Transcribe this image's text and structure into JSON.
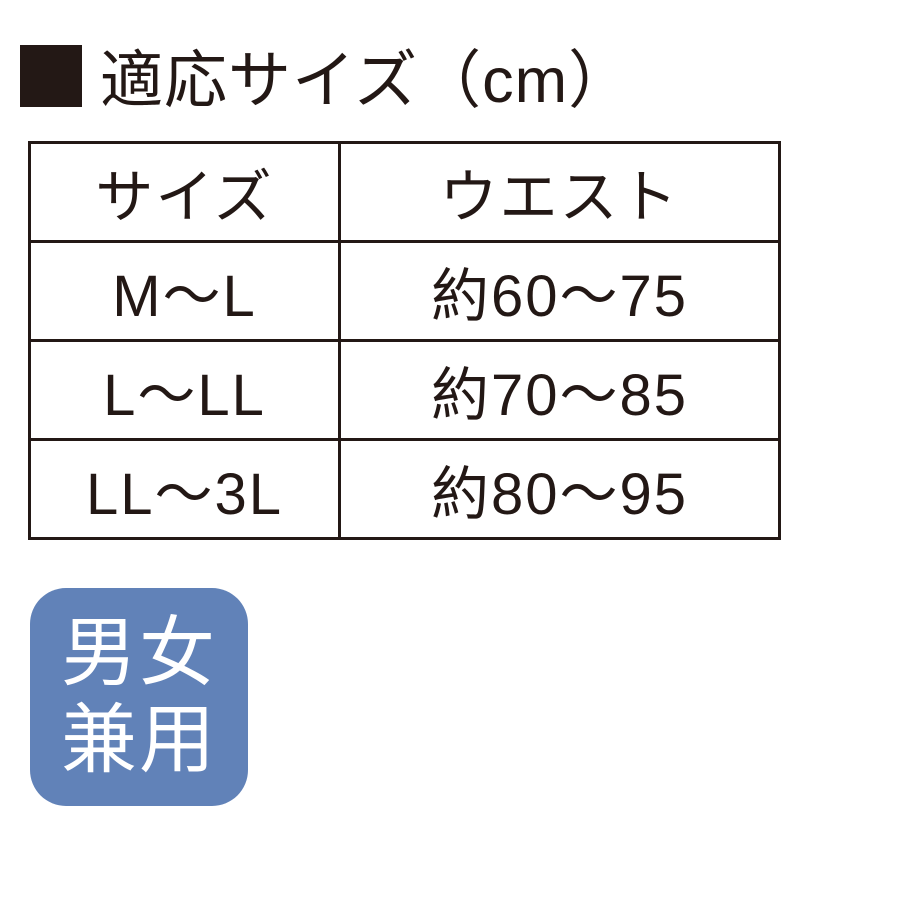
{
  "title": "適応サイズ（cm）",
  "table": {
    "headers": {
      "size": "サイズ",
      "waist": "ウエスト"
    },
    "rows": [
      {
        "size": "M〜L",
        "waist": "約60〜75"
      },
      {
        "size": "L〜LL",
        "waist": "約70〜85"
      },
      {
        "size": "LL〜3L",
        "waist": "約80〜95"
      }
    ]
  },
  "badge": {
    "line1": "男女",
    "line2": "兼用",
    "bg_color": "#6182b8",
    "text_color": "#ffffff"
  },
  "colors": {
    "text": "#231815",
    "border": "#231815",
    "background": "#ffffff"
  }
}
